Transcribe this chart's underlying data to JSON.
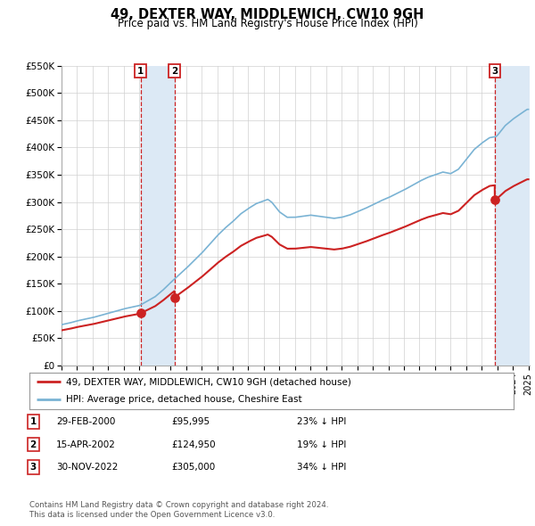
{
  "title": "49, DEXTER WAY, MIDDLEWICH, CW10 9GH",
  "subtitle": "Price paid vs. HM Land Registry's House Price Index (HPI)",
  "ylim": [
    0,
    550000
  ],
  "yticks": [
    0,
    50000,
    100000,
    150000,
    200000,
    250000,
    300000,
    350000,
    400000,
    450000,
    500000,
    550000
  ],
  "ytick_labels": [
    "£0",
    "£50K",
    "£100K",
    "£150K",
    "£200K",
    "£250K",
    "£300K",
    "£350K",
    "£400K",
    "£450K",
    "£500K",
    "£550K"
  ],
  "hpi_color": "#7ab3d4",
  "property_color": "#cc2222",
  "background_color": "#ffffff",
  "grid_color": "#d0d0d0",
  "legend_label_property": "49, DEXTER WAY, MIDDLEWICH, CW10 9GH (detached house)",
  "legend_label_hpi": "HPI: Average price, detached house, Cheshire East",
  "transaction_display": [
    {
      "label": "1",
      "date_str": "29-FEB-2000",
      "price_str": "£95,995",
      "pct_str": "23% ↓ HPI"
    },
    {
      "label": "2",
      "date_str": "15-APR-2002",
      "price_str": "£124,950",
      "pct_str": "19% ↓ HPI"
    },
    {
      "label": "3",
      "date_str": "30-NOV-2022",
      "price_str": "£305,000",
      "pct_str": "34% ↓ HPI"
    }
  ],
  "vline_color": "#cc2222",
  "shade_color": "#dce9f5",
  "note1": "Contains HM Land Registry data © Crown copyright and database right 2024.",
  "note2": "This data is licensed under the Open Government Licence v3.0."
}
